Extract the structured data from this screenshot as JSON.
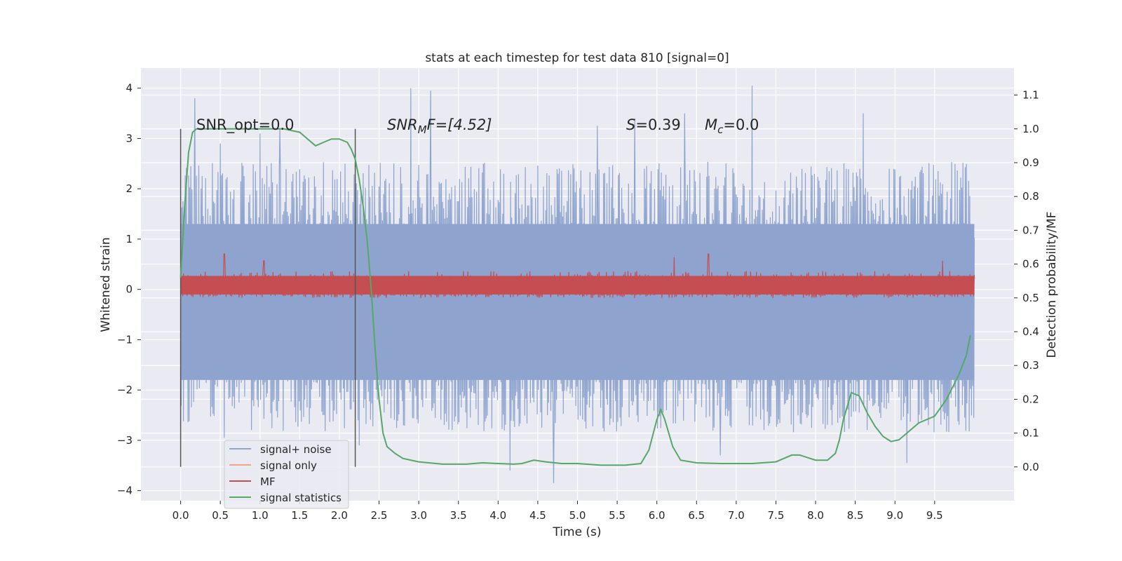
{
  "chart_data": {
    "type": "line",
    "title": "stats at each timestep for test data 810 [signal=0]",
    "xlabel": "Time (s)",
    "ylabel": "Whitened strain",
    "y2label": "Detection probability/MF",
    "xlim": [
      -0.5,
      10.5
    ],
    "ylim": [
      -4.2,
      4.4
    ],
    "y2lim": [
      -0.1,
      1.18
    ],
    "x_ticks": [
      "0.0",
      "0.5",
      "1.0",
      "1.5",
      "2.0",
      "2.5",
      "3.0",
      "3.5",
      "4.0",
      "4.5",
      "5.0",
      "5.5",
      "6.0",
      "6.5",
      "7.0",
      "7.5",
      "8.0",
      "8.5",
      "9.0",
      "9.5"
    ],
    "y_ticks": [
      "4",
      "3",
      "2",
      "1",
      "0",
      "−1",
      "−2",
      "−3",
      "−4"
    ],
    "y2_ticks": [
      "1.1",
      "1.0",
      "0.9",
      "0.8",
      "0.7",
      "0.6",
      "0.5",
      "0.4",
      "0.3",
      "0.2",
      "0.1",
      "0.0"
    ],
    "grid": true,
    "legend_position": "lower-left",
    "annotations": {
      "snr_opt": "SNR_opt=0.0",
      "snr_mf_prefix": "SNR",
      "snr_mf_sub": "M",
      "snr_mf_suffix": "F=[4.52]",
      "s_var": "S",
      "s_value": "=0.39",
      "mc_var": "M",
      "mc_sub": "c",
      "mc_value": "=0.0"
    },
    "vertical_markers_x": [
      0.0,
      2.2
    ],
    "series": [
      {
        "name": "signal+ noise",
        "color": "#8ea4cf",
        "axis": "left",
        "x_range": [
          0.0,
          10.0
        ],
        "envelope_upper_typical": 1.3,
        "envelope_lower_typical": -1.8,
        "max": 4.05,
        "min": -3.85,
        "peaks": [
          {
            "x": 0.18,
            "y": 3.8
          },
          {
            "x": 0.5,
            "y": 2.9
          },
          {
            "x": 1.0,
            "y": 3.1
          },
          {
            "x": 1.25,
            "y": 3.2
          },
          {
            "x": 2.9,
            "y": 4.0
          },
          {
            "x": 3.15,
            "y": 3.95
          },
          {
            "x": 5.25,
            "y": 3.25
          },
          {
            "x": 5.72,
            "y": 3.4
          },
          {
            "x": 6.35,
            "y": 3.5
          },
          {
            "x": 7.2,
            "y": 4.05
          },
          {
            "x": 8.6,
            "y": 3.5
          }
        ],
        "troughs": [
          {
            "x": 0.55,
            "y": -2.95
          },
          {
            "x": 2.25,
            "y": -3.1
          },
          {
            "x": 4.15,
            "y": -3.6
          },
          {
            "x": 4.7,
            "y": -3.85
          },
          {
            "x": 6.8,
            "y": -3.3
          },
          {
            "x": 9.15,
            "y": -3.45
          }
        ]
      },
      {
        "name": "signal only",
        "color": "#f2a58b",
        "axis": "left",
        "x": [
          0.0,
          10.0
        ],
        "y": [
          0.0,
          0.0
        ]
      },
      {
        "name": "MF",
        "color": "#c44e52",
        "axis": "right",
        "x_range": [
          0.0,
          10.0
        ],
        "baseline": 0.5,
        "typical_max": 0.58,
        "max": 0.64,
        "peaks": [
          {
            "x": 0.55,
            "y": 0.63
          },
          {
            "x": 1.05,
            "y": 0.61
          },
          {
            "x": 6.22,
            "y": 0.62
          },
          {
            "x": 6.65,
            "y": 0.63
          },
          {
            "x": 9.6,
            "y": 0.61
          }
        ]
      },
      {
        "name": "signal statistics",
        "color": "#55a868",
        "axis": "right",
        "x": [
          0.0,
          0.05,
          0.1,
          0.15,
          0.2,
          0.3,
          0.5,
          0.8,
          1.0,
          1.3,
          1.5,
          1.6,
          1.7,
          1.8,
          1.9,
          2.0,
          2.1,
          2.15,
          2.2,
          2.25,
          2.3,
          2.35,
          2.4,
          2.45,
          2.5,
          2.55,
          2.6,
          2.7,
          2.8,
          3.0,
          3.3,
          3.6,
          3.8,
          4.0,
          4.2,
          4.3,
          4.45,
          4.6,
          4.8,
          5.0,
          5.3,
          5.6,
          5.8,
          5.9,
          6.0,
          6.05,
          6.1,
          6.2,
          6.3,
          6.5,
          6.8,
          7.2,
          7.5,
          7.7,
          7.8,
          8.0,
          8.15,
          8.25,
          8.3,
          8.35,
          8.45,
          8.55,
          8.65,
          8.75,
          8.85,
          8.95,
          9.05,
          9.15,
          9.3,
          9.5,
          9.65,
          9.8,
          9.9,
          9.95
        ],
        "y": [
          0.56,
          0.77,
          0.93,
          0.99,
          1.0,
          1.0,
          1.0,
          1.0,
          1.0,
          1.0,
          0.99,
          0.97,
          0.95,
          0.96,
          0.97,
          0.97,
          0.96,
          0.94,
          0.91,
          0.85,
          0.77,
          0.67,
          0.53,
          0.35,
          0.2,
          0.1,
          0.06,
          0.04,
          0.025,
          0.015,
          0.008,
          0.008,
          0.012,
          0.01,
          0.008,
          0.01,
          0.02,
          0.015,
          0.01,
          0.01,
          0.005,
          0.005,
          0.01,
          0.05,
          0.14,
          0.17,
          0.14,
          0.06,
          0.02,
          0.012,
          0.01,
          0.01,
          0.015,
          0.035,
          0.035,
          0.02,
          0.02,
          0.04,
          0.08,
          0.14,
          0.22,
          0.21,
          0.16,
          0.12,
          0.09,
          0.075,
          0.08,
          0.1,
          0.13,
          0.15,
          0.2,
          0.27,
          0.33,
          0.39
        ]
      }
    ]
  }
}
